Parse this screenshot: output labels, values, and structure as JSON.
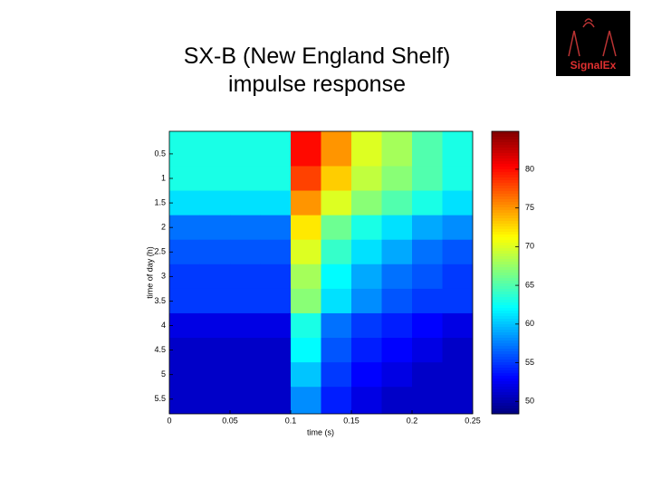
{
  "title_lines": [
    "SX-B (New England Shelf)",
    "impulse response"
  ],
  "logo": {
    "text": "SignalEx"
  },
  "chart_data": {
    "type": "heatmap",
    "xlabel": "time (s)",
    "ylabel": "time of day (h)",
    "xbins": [
      0,
      0.025,
      0.05,
      0.075,
      0.1,
      0.125,
      0.15,
      0.175,
      0.2,
      0.225,
      0.25
    ],
    "ybins": [
      0.04,
      0.75,
      1.25,
      1.75,
      2.25,
      2.75,
      3.25,
      3.75,
      4.25,
      4.75,
      5.25,
      5.8
    ],
    "z": [
      [
        63,
        63,
        63,
        63,
        80,
        75,
        70,
        68,
        65,
        63
      ],
      [
        63,
        63,
        63,
        63,
        78,
        73,
        69,
        67,
        65,
        63
      ],
      [
        61,
        61,
        61,
        61,
        75,
        70,
        67,
        65,
        63,
        61
      ],
      [
        57,
        57,
        57,
        57,
        72,
        66,
        63,
        61,
        59,
        58
      ],
      [
        56,
        56,
        56,
        56,
        70,
        64,
        61,
        59,
        57,
        56
      ],
      [
        55,
        55,
        55,
        55,
        68,
        62,
        59,
        57,
        56,
        55
      ],
      [
        55,
        55,
        55,
        55,
        67,
        61,
        58,
        56,
        55,
        55
      ],
      [
        52,
        52,
        52,
        52,
        63,
        57,
        55,
        54,
        53,
        52
      ],
      [
        51,
        51,
        51,
        51,
        62,
        56,
        54,
        53,
        52,
        51
      ],
      [
        51,
        51,
        51,
        51,
        60,
        55,
        53,
        52,
        51,
        51
      ],
      [
        51,
        51,
        51,
        51,
        58,
        54,
        52,
        51,
        51,
        51
      ]
    ],
    "xlim": [
      0,
      0.25
    ],
    "ylim": [
      0.04,
      5.8
    ],
    "xticks": [
      0,
      0.05,
      0.1,
      0.15,
      0.2,
      0.25
    ],
    "yticks": [
      0.5,
      1,
      1.5,
      2,
      2.5,
      3,
      3.5,
      4,
      4.5,
      5,
      5.5
    ],
    "clim": [
      48.4,
      84.9
    ],
    "cticks": [
      50,
      55,
      60,
      65,
      70,
      75,
      80
    ],
    "colormap": "jet",
    "y_reversed": true
  }
}
